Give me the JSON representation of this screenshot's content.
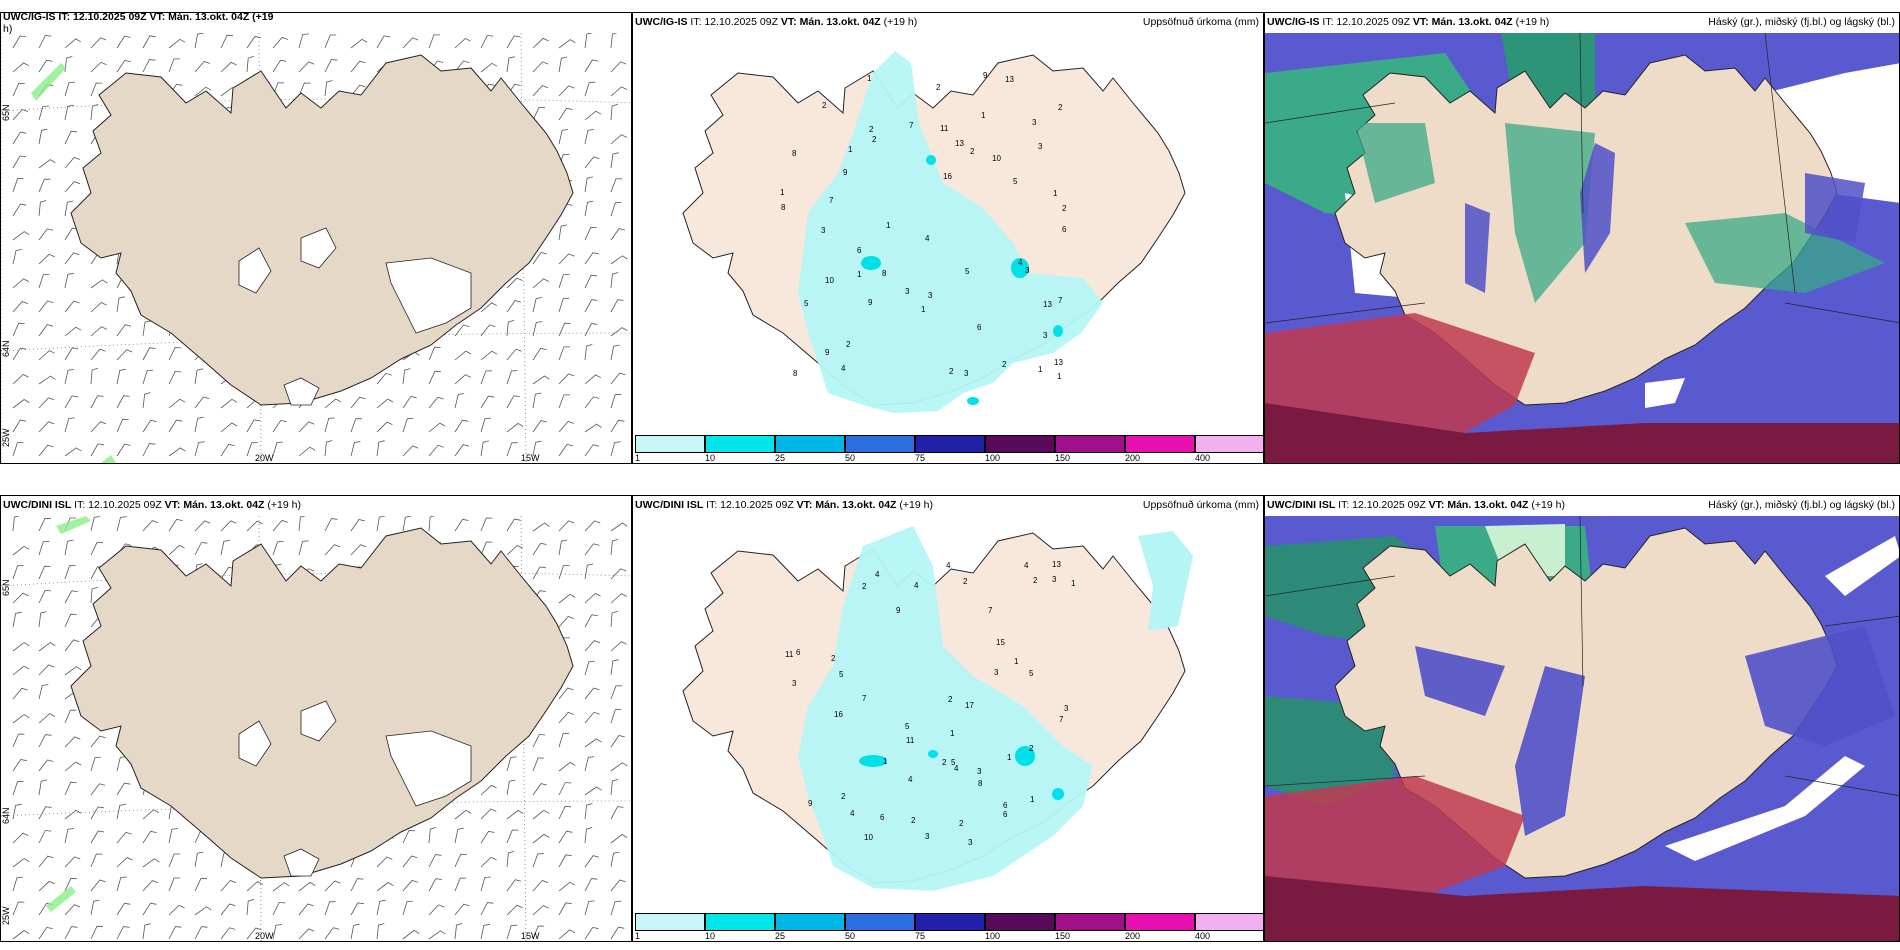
{
  "panels": {
    "p1": {
      "header_cut": "UWC/IG-IS IT: 12.10.2025 09Z VT: Mán. 13.okt. 04Z (+19",
      "header_cut2": "h)"
    },
    "p2": {
      "model": "UWC/IG-IS",
      "it": "IT: 12.10.2025 09Z",
      "vt": "VT: Mán. 13.okt. 04Z",
      "lead": "(+19 h)",
      "right": "Uppsöfnuð úrkoma (mm)"
    },
    "p3": {
      "model": "UWC/IG-IS",
      "it": "IT: 12.10.2025 09Z",
      "vt": "VT: Mán. 13.okt. 04Z",
      "lead": "(+19 h)",
      "right": "Háský (gr.), miðský (fj.bl.) og lágský (bl.)"
    },
    "p4": {
      "model": "UWC/DINI ISL",
      "it": "IT: 12.10.2025 09Z",
      "vt": "VT: Mán. 13.okt. 04Z",
      "lead": "(+19 h)"
    },
    "p5": {
      "model": "UWC/DINI ISL",
      "it": "IT: 12.10.2025 09Z",
      "vt": "VT: Mán. 13.okt. 04Z",
      "lead": "(+19 h)",
      "right": "Uppsöfnuð úrkoma (mm)"
    },
    "p6": {
      "model": "UWC/DINI ISL",
      "it": "IT: 12.10.2025 09Z",
      "vt": "VT: Mán. 13.okt. 04Z",
      "lead": "(+19 h)",
      "right": "Háský (gr.), miðský (fj.bl.) og lágský (bl.)"
    }
  },
  "grid_labels": {
    "lat65": "65N",
    "lat64": "64N",
    "lon20": "20W",
    "lon15": "15W",
    "lon25": "25W"
  },
  "colorbar": {
    "colors": [
      "#c8f5f5",
      "#00e6ea",
      "#00b8e8",
      "#2a6ee0",
      "#2020a8",
      "#5a0a5a",
      "#a0108a",
      "#e810b0",
      "#f2b0f0"
    ],
    "ticks": [
      "1",
      "10",
      "25",
      "50",
      "75",
      "100",
      "150",
      "200",
      "400"
    ]
  },
  "precip_top": [
    "2",
    "1",
    "2",
    "2",
    "1",
    "7",
    "8",
    "9",
    "13",
    "3",
    "9",
    "3",
    "5",
    "9",
    "5",
    "4",
    "6",
    "1",
    "1",
    "7",
    "13",
    "11",
    "9",
    "10",
    "16",
    "13",
    "8",
    "6",
    "2",
    "2",
    "4",
    "1",
    "3",
    "2",
    "7",
    "8",
    "6",
    "5",
    "3",
    "4",
    "3",
    "8",
    "3",
    "3",
    "3",
    "2",
    "13",
    "10",
    "2",
    "2",
    "1",
    "1",
    "2",
    "1",
    "1",
    "1"
  ],
  "precip_bottom": [
    "3",
    "2",
    "2",
    "2",
    "1",
    "2",
    "7",
    "7",
    "11",
    "4",
    "9",
    "11",
    "5",
    "5",
    "3",
    "4",
    "3",
    "2",
    "1",
    "5",
    "6",
    "4",
    "10",
    "6",
    "17",
    "15",
    "16",
    "5",
    "3",
    "9",
    "8",
    "13",
    "7",
    "6",
    "4",
    "2",
    "4",
    "6",
    "3",
    "3",
    "4",
    "2",
    "1",
    "1",
    "2",
    "2",
    "2",
    "4",
    "1",
    "3",
    "1"
  ]
}
